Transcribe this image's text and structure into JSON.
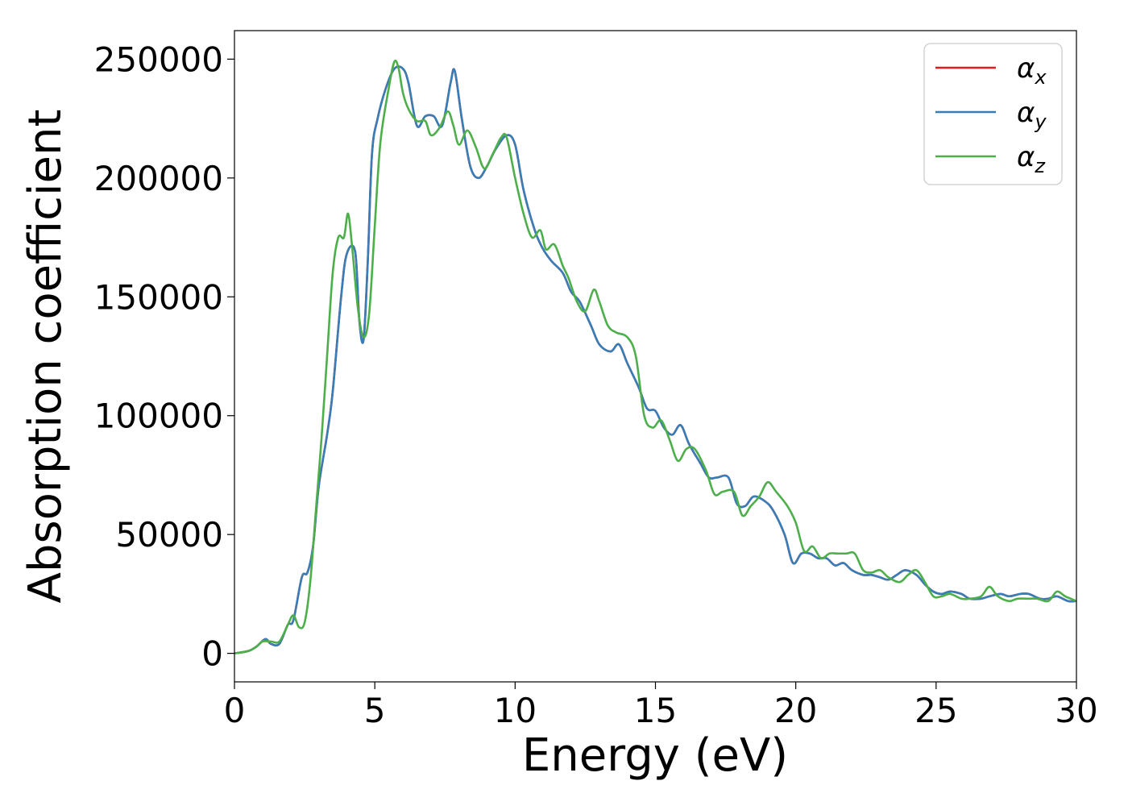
{
  "chart_data": {
    "type": "line",
    "title": "",
    "xlabel": "Energy (eV)",
    "ylabel": "Absorption coefficient",
    "xlim": [
      0,
      30
    ],
    "ylim": [
      -12000,
      262000
    ],
    "xticks": [
      0,
      5,
      10,
      15,
      20,
      25,
      30
    ],
    "xtick_labels": [
      "0",
      "5",
      "10",
      "15",
      "20",
      "25",
      "30"
    ],
    "yticks": [
      0,
      50000,
      100000,
      150000,
      200000,
      250000
    ],
    "ytick_labels": [
      "0",
      "50000",
      "100000",
      "150000",
      "200000",
      "250000"
    ],
    "grid": false,
    "legend_position": "top-right",
    "series": [
      {
        "name": "α_x",
        "legend_main": "α",
        "legend_sub": "x",
        "color": "#e41a1c",
        "x": [
          0,
          0.5,
          0.8,
          1.1,
          1.3,
          1.6,
          1.9,
          2.1,
          2.4,
          2.6,
          2.8,
          3.0,
          3.3,
          3.5,
          3.8,
          4.0,
          4.3,
          4.45,
          4.6,
          4.75,
          4.9,
          5.1,
          5.4,
          5.7,
          6.0,
          6.2,
          6.5,
          6.8,
          7.1,
          7.4,
          7.7,
          7.85,
          8.1,
          8.4,
          8.7,
          9.0,
          9.3,
          9.7,
          10.0,
          10.3,
          10.7,
          11.0,
          11.3,
          11.7,
          12.0,
          12.3,
          12.7,
          13.0,
          13.4,
          13.7,
          14.0,
          14.4,
          14.7,
          15.0,
          15.3,
          15.6,
          15.9,
          16.2,
          16.6,
          16.9,
          17.2,
          17.6,
          17.9,
          18.2,
          18.5,
          18.9,
          19.2,
          19.6,
          19.9,
          20.2,
          20.5,
          20.8,
          21.1,
          21.4,
          21.7,
          22.0,
          22.4,
          22.7,
          23.0,
          23.3,
          23.6,
          23.9,
          24.3,
          24.6,
          24.9,
          25.2,
          25.5,
          25.9,
          26.2,
          26.6,
          26.9,
          27.3,
          27.6,
          28.0,
          28.3,
          28.7,
          29.0,
          29.3,
          29.7,
          30
        ],
        "y": [
          0,
          1000,
          3000,
          6000,
          4000,
          4000,
          12000,
          14000,
          32000,
          34000,
          45000,
          70000,
          92000,
          110000,
          150000,
          168000,
          169000,
          140000,
          132000,
          165000,
          210000,
          225000,
          238000,
          246000,
          246000,
          240000,
          222000,
          226000,
          226000,
          222000,
          240000,
          245000,
          225000,
          205000,
          200000,
          205000,
          212000,
          218000,
          214000,
          195000,
          178000,
          170000,
          165000,
          160000,
          152000,
          148000,
          138000,
          130000,
          127000,
          130000,
          122000,
          112000,
          103000,
          102000,
          95000,
          92000,
          96000,
          88000,
          80000,
          74000,
          74000,
          74000,
          63000,
          62000,
          66000,
          64000,
          60000,
          50000,
          38000,
          42000,
          42000,
          40000,
          40000,
          37000,
          38000,
          35000,
          33000,
          33000,
          32000,
          31000,
          33000,
          35000,
          33000,
          29000,
          26000,
          25000,
          26000,
          25000,
          23000,
          23000,
          24000,
          25000,
          24000,
          25000,
          25000,
          23000,
          23000,
          24000,
          22000,
          22000
        ]
      },
      {
        "name": "α_y",
        "legend_main": "α",
        "legend_sub": "y",
        "color": "#377eb8",
        "x": [
          0,
          0.5,
          0.8,
          1.1,
          1.3,
          1.6,
          1.9,
          2.1,
          2.4,
          2.6,
          2.8,
          3.0,
          3.3,
          3.5,
          3.8,
          4.0,
          4.3,
          4.45,
          4.6,
          4.75,
          4.9,
          5.1,
          5.4,
          5.7,
          6.0,
          6.2,
          6.5,
          6.8,
          7.1,
          7.4,
          7.7,
          7.85,
          8.1,
          8.4,
          8.7,
          9.0,
          9.3,
          9.7,
          10.0,
          10.3,
          10.7,
          11.0,
          11.3,
          11.7,
          12.0,
          12.3,
          12.7,
          13.0,
          13.4,
          13.7,
          14.0,
          14.4,
          14.7,
          15.0,
          15.3,
          15.6,
          15.9,
          16.2,
          16.6,
          16.9,
          17.2,
          17.6,
          17.9,
          18.2,
          18.5,
          18.9,
          19.2,
          19.6,
          19.9,
          20.2,
          20.5,
          20.8,
          21.1,
          21.4,
          21.7,
          22.0,
          22.4,
          22.7,
          23.0,
          23.3,
          23.6,
          23.9,
          24.3,
          24.6,
          24.9,
          25.2,
          25.5,
          25.9,
          26.2,
          26.6,
          26.9,
          27.3,
          27.6,
          28.0,
          28.3,
          28.7,
          29.0,
          29.3,
          29.7,
          30
        ],
        "y": [
          0,
          1000,
          3000,
          6000,
          4000,
          4000,
          12000,
          14000,
          32000,
          34000,
          45000,
          70000,
          92000,
          110000,
          150000,
          168000,
          169000,
          140000,
          132000,
          165000,
          210000,
          225000,
          238000,
          246000,
          246000,
          240000,
          222000,
          226000,
          226000,
          222000,
          240000,
          245000,
          225000,
          205000,
          200000,
          205000,
          212000,
          218000,
          214000,
          195000,
          178000,
          170000,
          165000,
          160000,
          152000,
          148000,
          138000,
          130000,
          127000,
          130000,
          122000,
          112000,
          103000,
          102000,
          95000,
          92000,
          96000,
          88000,
          80000,
          74000,
          74000,
          74000,
          63000,
          62000,
          66000,
          64000,
          60000,
          50000,
          38000,
          42000,
          42000,
          40000,
          40000,
          37000,
          38000,
          35000,
          33000,
          33000,
          32000,
          31000,
          33000,
          35000,
          33000,
          29000,
          26000,
          25000,
          26000,
          25000,
          23000,
          23000,
          24000,
          25000,
          24000,
          25000,
          25000,
          23000,
          23000,
          24000,
          22000,
          22000
        ]
      },
      {
        "name": "α_z",
        "legend_main": "α",
        "legend_sub": "z",
        "color": "#4daf4a",
        "x": [
          0,
          0.5,
          0.8,
          1.0,
          1.3,
          1.6,
          1.9,
          2.1,
          2.3,
          2.5,
          2.7,
          2.9,
          3.1,
          3.3,
          3.5,
          3.7,
          3.9,
          4.05,
          4.2,
          4.4,
          4.6,
          4.8,
          5.0,
          5.2,
          5.5,
          5.7,
          5.85,
          6.0,
          6.2,
          6.5,
          6.8,
          7.0,
          7.3,
          7.6,
          7.8,
          8.0,
          8.3,
          8.6,
          8.9,
          9.2,
          9.5,
          9.7,
          10.0,
          10.3,
          10.6,
          10.9,
          11.1,
          11.4,
          11.7,
          11.9,
          12.2,
          12.5,
          12.8,
          13.0,
          13.3,
          13.6,
          14.0,
          14.3,
          14.6,
          14.9,
          15.2,
          15.5,
          15.8,
          16.1,
          16.4,
          16.8,
          17.1,
          17.4,
          17.8,
          18.1,
          18.4,
          18.7,
          19.0,
          19.3,
          19.7,
          20.0,
          20.3,
          20.6,
          20.9,
          21.2,
          21.5,
          21.8,
          22.1,
          22.4,
          22.7,
          23.0,
          23.3,
          23.7,
          24.0,
          24.3,
          24.6,
          24.9,
          25.2,
          25.5,
          25.9,
          26.2,
          26.6,
          26.9,
          27.2,
          27.6,
          27.9,
          28.3,
          28.6,
          29.0,
          29.3,
          29.6,
          30
        ],
        "y": [
          0,
          1000,
          3000,
          5000,
          5000,
          5000,
          12000,
          16000,
          11000,
          13000,
          30000,
          60000,
          90000,
          125000,
          160000,
          175000,
          175000,
          185000,
          170000,
          145000,
          133000,
          143000,
          180000,
          215000,
          238000,
          249000,
          246000,
          236000,
          229000,
          224000,
          224000,
          218000,
          221000,
          228000,
          222000,
          214000,
          220000,
          213000,
          204000,
          210000,
          217000,
          217000,
          200000,
          185000,
          175000,
          178000,
          170000,
          172000,
          163000,
          158000,
          148000,
          144000,
          153000,
          148000,
          138000,
          135000,
          133000,
          125000,
          100000,
          95000,
          98000,
          90000,
          81000,
          86000,
          86000,
          77000,
          67000,
          68000,
          68000,
          58000,
          62000,
          66000,
          72000,
          68000,
          62000,
          55000,
          43000,
          45000,
          40000,
          42000,
          42000,
          42000,
          42000,
          35000,
          34000,
          35000,
          32000,
          30000,
          33000,
          35000,
          30000,
          24000,
          24000,
          25000,
          23000,
          23000,
          24000,
          28000,
          24000,
          22000,
          23000,
          23000,
          23000,
          22000,
          26000,
          24000,
          22000
        ]
      }
    ]
  }
}
